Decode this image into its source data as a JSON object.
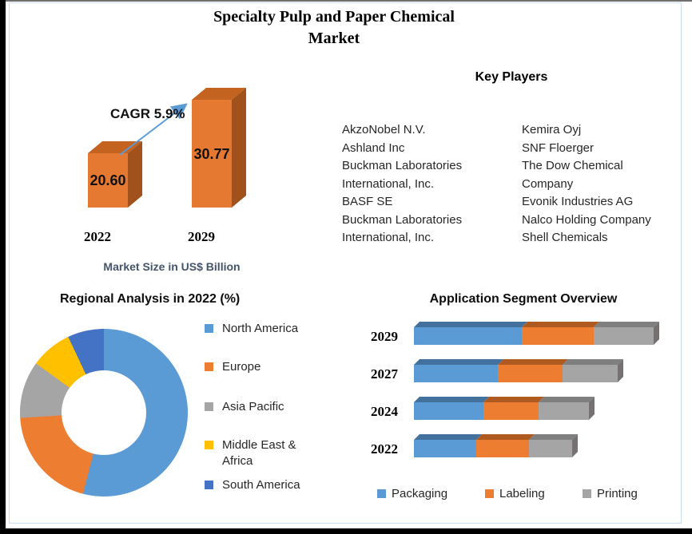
{
  "title": {
    "line1": "Specialty Pulp and Paper Chemical",
    "line2": "Market"
  },
  "market_chart": {
    "cagr_label": "CAGR 5.9%",
    "caption": "Market Size in US$ Billion",
    "bars": [
      {
        "year": "2022",
        "value": "20.60"
      },
      {
        "year": "2029",
        "value": "30.77"
      }
    ]
  },
  "key_players": {
    "heading": "Key Players",
    "left_column": [
      "AkzoNobel N.V.",
      "Ashland Inc",
      "Buckman Laboratories",
      "International, Inc.",
      "BASF SE",
      "Buckman Laboratories",
      "International, Inc."
    ],
    "right_column": [
      "Kemira Oyj",
      "SNF Floerger",
      "The Dow Chemical",
      "Company",
      "Evonik Industries AG",
      "Nalco Holding Company",
      "Shell Chemicals"
    ]
  },
  "regional": {
    "title": "Regional Analysis in 2022 (%)",
    "legend": [
      {
        "label": "North America",
        "color": "#5B9BD5"
      },
      {
        "label": "Europe",
        "color": "#ED7D31"
      },
      {
        "label": "Asia Pacific",
        "color": "#A5A5A5"
      },
      {
        "label": "Middle East & Africa",
        "color": "#FFC000"
      },
      {
        "label": "South America",
        "color": "#4472C4"
      }
    ]
  },
  "application": {
    "title": "Application Segment Overview",
    "years": [
      "2029",
      "2027",
      "2024",
      "2022"
    ],
    "legend": [
      {
        "label": "Packaging",
        "color": "#5B9BD5"
      },
      {
        "label": "Labeling",
        "color": "#ED7D31"
      },
      {
        "label": "Printing",
        "color": "#A5A5A5"
      }
    ]
  },
  "chart_data": [
    {
      "type": "bar",
      "title": "Market Size in US$ Billion",
      "categories": [
        "2022",
        "2029"
      ],
      "values": [
        20.6,
        30.77
      ],
      "unit": "US$ Billion",
      "annotation": "CAGR 5.9%",
      "orientation": "vertical",
      "style": "3d-column",
      "bar_color": "#E67931"
    },
    {
      "type": "pie",
      "subtype": "donut",
      "title": "Regional Analysis in 2022 (%)",
      "labels": [
        "North America",
        "Europe",
        "Asia Pacific",
        "Middle East & Africa",
        "South America"
      ],
      "values": [
        54,
        20,
        11,
        8,
        7
      ],
      "colors": [
        "#5B9BD5",
        "#ED7D31",
        "#A5A5A5",
        "#FFC000",
        "#4472C4"
      ],
      "legend_position": "right",
      "start_angle_deg": 0
    },
    {
      "type": "bar",
      "subtype": "stacked-horizontal",
      "title": "Application Segment Overview",
      "categories": [
        "2029",
        "2027",
        "2024",
        "2022"
      ],
      "series": [
        {
          "name": "Packaging",
          "color": "#5B9BD5",
          "values": [
            45,
            35,
            29,
            26
          ]
        },
        {
          "name": "Labeling",
          "color": "#ED7D31",
          "values": [
            30,
            27,
            23,
            22
          ]
        },
        {
          "name": "Printing",
          "color": "#A5A5A5",
          "values": [
            25,
            23,
            21,
            18
          ]
        }
      ],
      "legend_position": "bottom",
      "value_axis_visible": false,
      "style": "3d-bar"
    }
  ],
  "colors": {
    "bar_front": "#E67931",
    "bar_top": "#C4631F",
    "bar_side": "#A0511C",
    "arrow": "#5B9BD5",
    "caption_text": "#44546A",
    "frame_border": "#CBDDF0",
    "seg_tops": {
      "Packaging": "#41719C",
      "Labeling": "#AE5A21",
      "Printing": "#7F7F7F"
    },
    "end_cap": "#767171"
  }
}
